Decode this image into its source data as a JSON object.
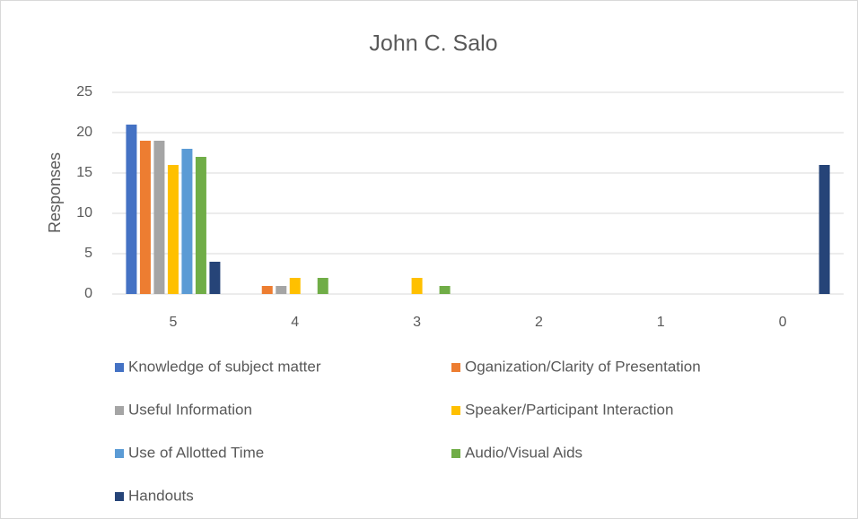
{
  "chart_data": {
    "type": "bar",
    "title": "John C. Salo",
    "y_label": "Responses",
    "categories": [
      "5",
      "4",
      "3",
      "2",
      "1",
      "0"
    ],
    "series": [
      {
        "name": "Knowledge of subject matter",
        "color": "#4472c4",
        "values": [
          21,
          0,
          0,
          0,
          0,
          0
        ]
      },
      {
        "name": "Oganization/Clarity of Presentation",
        "color": "#ed7d31",
        "values": [
          19,
          1,
          0,
          0,
          0,
          0
        ]
      },
      {
        "name": "Useful Information",
        "color": "#a5a5a5",
        "values": [
          19,
          1,
          0,
          0,
          0,
          0
        ]
      },
      {
        "name": "Speaker/Participant Interaction",
        "color": "#ffc000",
        "values": [
          16,
          2,
          2,
          0,
          0,
          0
        ]
      },
      {
        "name": "Use of Allotted Time",
        "color": "#5b9bd5",
        "values": [
          18,
          0,
          0,
          0,
          0,
          0
        ]
      },
      {
        "name": "Audio/Visual Aids",
        "color": "#70ad47",
        "values": [
          17,
          2,
          1,
          0,
          0,
          0
        ]
      },
      {
        "name": "Handouts",
        "color": "#264478",
        "values": [
          4,
          0,
          0,
          0,
          0,
          16
        ]
      }
    ],
    "ylim": [
      0,
      25
    ],
    "yticks": [
      0,
      5,
      10,
      15,
      20,
      25
    ],
    "grid": true,
    "legend": "bottom"
  }
}
